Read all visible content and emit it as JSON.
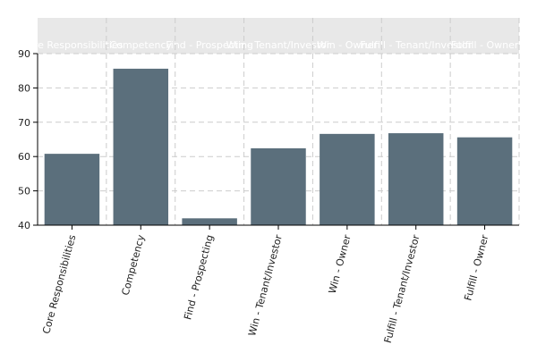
{
  "chart_data": {
    "type": "bar",
    "title": "",
    "xlabel": "",
    "ylabel": "",
    "categories": [
      "Core Responsibilities",
      "Competency",
      "Find - Prospecting",
      "Win - Tenant/Investor",
      "Win - Owner",
      "Fulfill - Tenant/Investor",
      "Fulfill - Owner"
    ],
    "values": [
      60.8,
      85.6,
      42.0,
      62.4,
      66.6,
      66.8,
      65.6
    ],
    "ylim": [
      40,
      90
    ],
    "yticks": [
      40,
      50,
      60,
      70,
      80,
      90
    ],
    "grid": true,
    "legend": "none",
    "colors": {
      "bar": "#5b6f7c",
      "header_band": "#e8e8e8",
      "header_text": "#ffffff",
      "grid": "#cccccc",
      "axis": "#000000",
      "tick_text": "#222222"
    }
  }
}
